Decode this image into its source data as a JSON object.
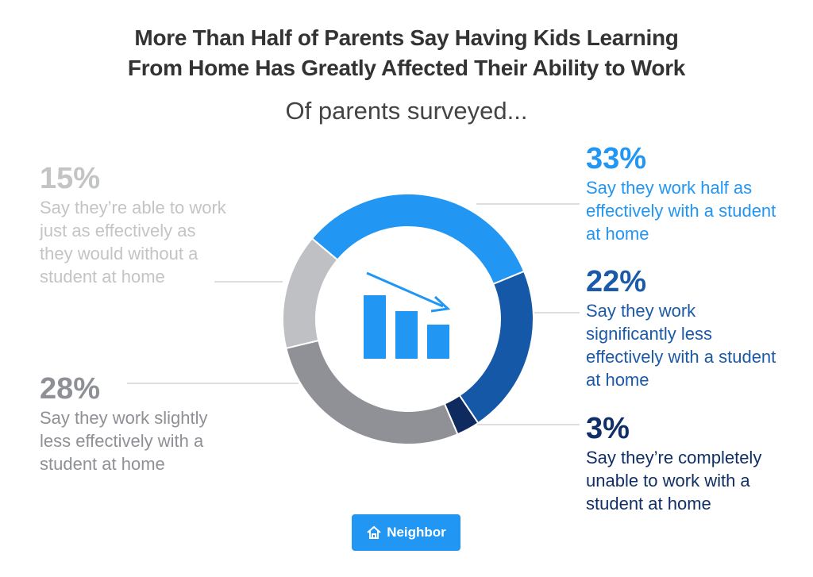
{
  "chart_data": {
    "type": "donut",
    "title": [
      "More Than Half of Parents Say Having Kids Learning",
      "From Home Has Greatly Affected Their Ability to Work"
    ],
    "subtitle": "Of parents surveyed...",
    "categories": [
      "Say they work half as effectively with a student at home",
      "Say they work significantly less effectively with a student at home",
      "Say they’re completely unable to work with a student at home",
      "Say they work slightly less effectively with a student at home",
      "Say they’re able to work just as effectively as they would without a student at home"
    ],
    "values": [
      33,
      22,
      3,
      28,
      15
    ],
    "value_labels": [
      "33%",
      "22%",
      "3%",
      "28%",
      "15%"
    ],
    "colors": [
      "#2196f3",
      "#1558a8",
      "#0e2a5e",
      "#8f9196",
      "#bfc0c3"
    ],
    "label_colors": [
      "#2196f3",
      "#1a5aa8",
      "#102f66",
      "#8e9095",
      "#c3c4c6"
    ]
  },
  "logo": "Neighbor"
}
